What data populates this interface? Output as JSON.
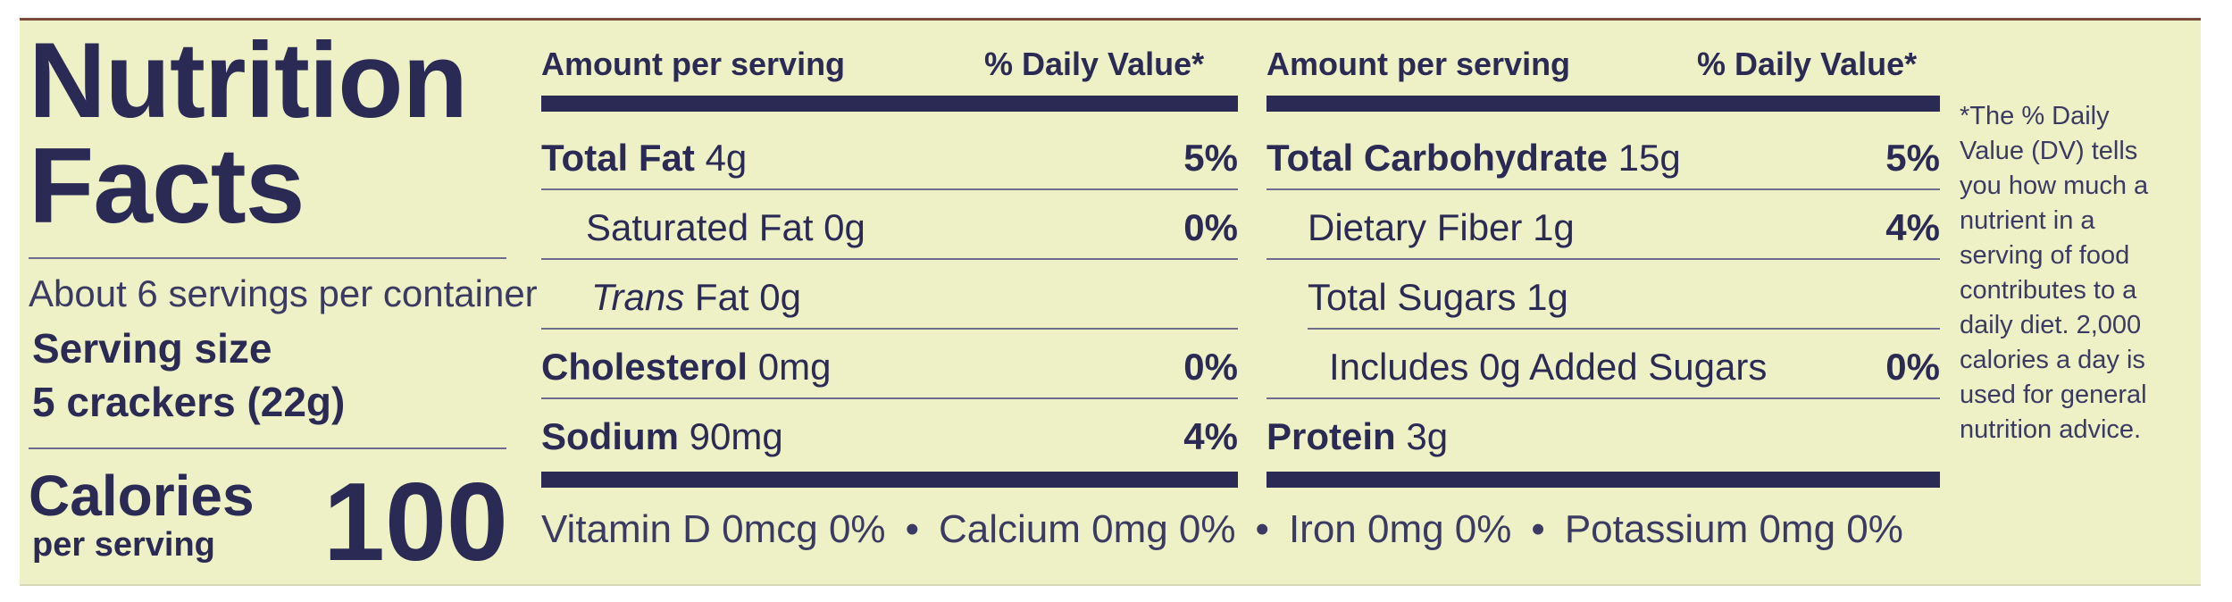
{
  "title": "Nutrition Facts",
  "servings_per_container": "About 6 servings per container",
  "serving_size_label": "Serving size",
  "serving_size_value": "5 crackers (22g)",
  "calories_label": "Calories",
  "calories_sub": "per serving",
  "calories_value": "100",
  "header": {
    "amount": "Amount per serving",
    "daily_value": "% Daily Value*"
  },
  "left_rows": [
    {
      "name": "Total Fat",
      "amount": "4g",
      "dv": "5%"
    },
    {
      "name": "Saturated Fat",
      "amount": "0g",
      "dv": "0%"
    },
    {
      "name": "Trans",
      "amount": "Fat 0g",
      "dv": ""
    },
    {
      "name": "Cholesterol",
      "amount": "0mg",
      "dv": "0%"
    },
    {
      "name": "Sodium",
      "amount": "90mg",
      "dv": "4%"
    }
  ],
  "right_rows": [
    {
      "name": "Total Carbohydrate",
      "amount": "15g",
      "dv": "5%"
    },
    {
      "name": "Dietary Fiber",
      "amount": "1g",
      "dv": "4%"
    },
    {
      "name": "Total Sugars",
      "amount": "1g",
      "dv": ""
    },
    {
      "name": "Includes 0g Added Sugars",
      "amount": "",
      "dv": "0%"
    },
    {
      "name": "Protein",
      "amount": "3g",
      "dv": ""
    }
  ],
  "footnote": "*The % Daily Value (DV) tells you how much a nutrient in a serving of food contributes to a daily diet. 2,000 calories a day is used for general nutrition advice.",
  "vitamins": [
    "Vitamin D 0mcg 0%",
    "Calcium 0mg 0%",
    "Iron 0mg 0%",
    "Potassium 0mg 0%"
  ],
  "separator": "•"
}
